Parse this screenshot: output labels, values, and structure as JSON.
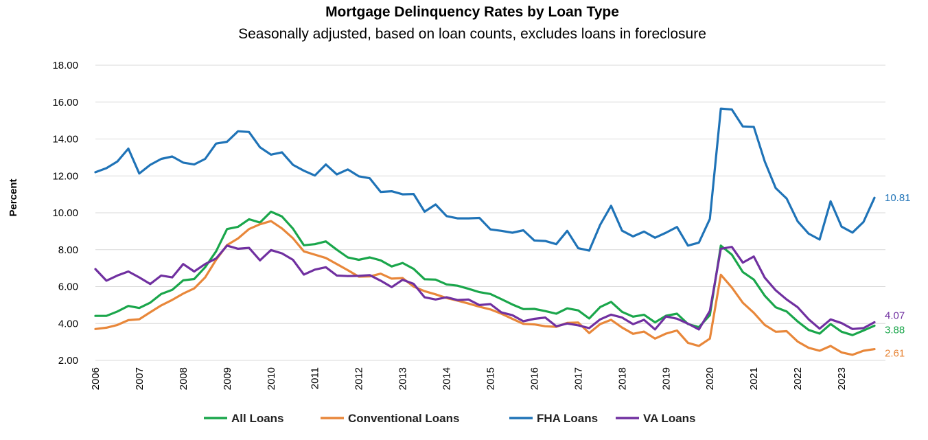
{
  "chart_data": {
    "type": "line",
    "title": "Mortgage Delinquency Rates by Loan Type",
    "subtitle": "Seasonally adjusted, based on loan counts, excludes loans in foreclosure",
    "ylabel": "Percent",
    "xlabel": "",
    "ylim": [
      2,
      18
    ],
    "yticks": [
      "2.00",
      "4.00",
      "6.00",
      "8.00",
      "10.00",
      "12.00",
      "14.00",
      "16.00",
      "18.00"
    ],
    "xlim": [
      2006,
      2024
    ],
    "xticks": [
      "2006",
      "2007",
      "2008",
      "2009",
      "2010",
      "2011",
      "2012",
      "2013",
      "2014",
      "2015",
      "2016",
      "2017",
      "2018",
      "2019",
      "2020",
      "2021",
      "2022",
      "2023"
    ],
    "x_start": "2006 Q1",
    "x_step": "quarter",
    "grid": "horizontal",
    "legend": "bottom",
    "series": [
      {
        "name": "All Loans",
        "color": "#1aa64b",
        "end_label": "3.88",
        "values": [
          4.41,
          4.41,
          4.65,
          4.95,
          4.84,
          5.13,
          5.6,
          5.82,
          6.34,
          6.41,
          7.05,
          7.91,
          9.12,
          9.24,
          9.65,
          9.47,
          10.06,
          9.8,
          9.14,
          8.24,
          8.3,
          8.45,
          8.0,
          7.58,
          7.45,
          7.58,
          7.42,
          7.09,
          7.28,
          6.96,
          6.4,
          6.38,
          6.12,
          6.05,
          5.88,
          5.7,
          5.6,
          5.32,
          5.03,
          4.78,
          4.79,
          4.67,
          4.53,
          4.82,
          4.71,
          4.27,
          4.89,
          5.17,
          4.63,
          4.37,
          4.47,
          4.06,
          4.42,
          4.53,
          3.97,
          3.8,
          4.45,
          8.22,
          7.73,
          6.79,
          6.38,
          5.5,
          4.88,
          4.65,
          4.11,
          3.65,
          3.45,
          3.97,
          3.55,
          3.37,
          3.62,
          3.88
        ]
      },
      {
        "name": "Conventional Loans",
        "color": "#e8873a",
        "end_label": "2.61",
        "values": [
          3.7,
          3.77,
          3.92,
          4.18,
          4.23,
          4.61,
          4.98,
          5.28,
          5.62,
          5.9,
          6.5,
          7.45,
          8.25,
          8.61,
          9.12,
          9.38,
          9.55,
          9.15,
          8.62,
          7.91,
          7.73,
          7.55,
          7.22,
          6.89,
          6.54,
          6.55,
          6.7,
          6.43,
          6.46,
          6.0,
          5.75,
          5.58,
          5.38,
          5.24,
          5.08,
          4.91,
          4.76,
          4.53,
          4.25,
          3.98,
          3.95,
          3.85,
          3.82,
          4.03,
          4.05,
          3.48,
          3.97,
          4.2,
          3.78,
          3.44,
          3.56,
          3.18,
          3.45,
          3.62,
          2.95,
          2.78,
          3.18,
          6.64,
          5.95,
          5.12,
          4.58,
          3.92,
          3.55,
          3.58,
          3.02,
          2.68,
          2.52,
          2.78,
          2.43,
          2.3,
          2.52,
          2.61
        ]
      },
      {
        "name": "FHA Loans",
        "color": "#1f73b7",
        "end_label": "10.81",
        "values": [
          12.2,
          12.42,
          12.78,
          13.48,
          12.13,
          12.6,
          12.92,
          13.05,
          12.72,
          12.62,
          12.92,
          13.75,
          13.85,
          14.42,
          14.38,
          13.55,
          13.15,
          13.28,
          12.6,
          12.28,
          12.02,
          12.62,
          12.08,
          12.35,
          11.98,
          11.87,
          11.13,
          11.17,
          11.0,
          11.02,
          10.06,
          10.45,
          9.82,
          9.7,
          9.7,
          9.72,
          9.1,
          9.02,
          8.92,
          9.05,
          8.5,
          8.47,
          8.3,
          9.02,
          8.08,
          7.95,
          9.35,
          10.38,
          9.03,
          8.72,
          8.98,
          8.65,
          8.92,
          9.23,
          8.22,
          8.38,
          9.67,
          15.65,
          15.6,
          14.68,
          14.66,
          12.78,
          11.34,
          10.77,
          9.54,
          8.87,
          8.55,
          10.62,
          9.25,
          8.93,
          9.5,
          10.81
        ]
      },
      {
        "name": "VA Loans",
        "color": "#7030a0",
        "end_label": "4.07",
        "values": [
          6.95,
          6.32,
          6.6,
          6.82,
          6.5,
          6.14,
          6.6,
          6.5,
          7.22,
          6.82,
          7.22,
          7.52,
          8.22,
          8.05,
          8.1,
          7.42,
          7.98,
          7.8,
          7.45,
          6.65,
          6.92,
          7.05,
          6.6,
          6.57,
          6.58,
          6.62,
          6.32,
          5.97,
          6.37,
          6.15,
          5.42,
          5.3,
          5.42,
          5.27,
          5.3,
          5.0,
          5.05,
          4.6,
          4.45,
          4.12,
          4.25,
          4.32,
          3.85,
          4.0,
          3.9,
          3.75,
          4.22,
          4.48,
          4.32,
          3.96,
          4.2,
          3.68,
          4.38,
          4.26,
          3.99,
          3.68,
          4.68,
          8.05,
          8.15,
          7.3,
          7.63,
          6.48,
          5.8,
          5.3,
          4.88,
          4.23,
          3.72,
          4.22,
          4.02,
          3.7,
          3.75,
          4.07
        ]
      }
    ]
  }
}
